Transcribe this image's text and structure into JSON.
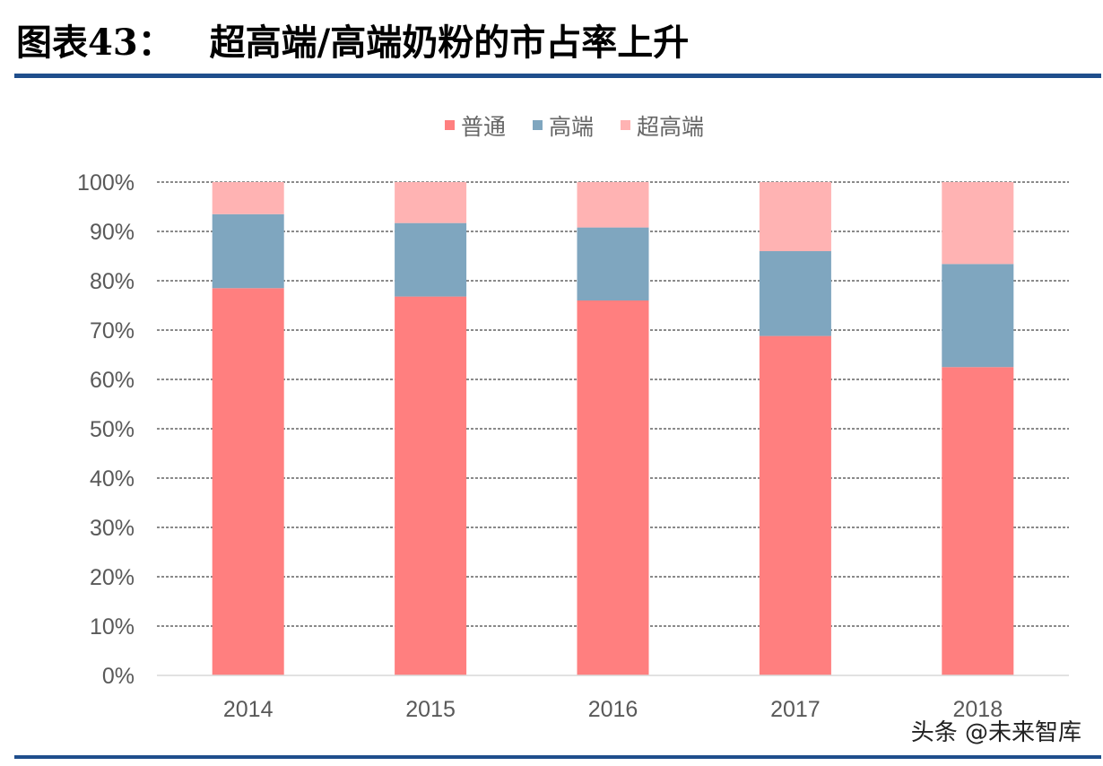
{
  "header": {
    "figure_label": "图表43：",
    "figure_title": "超高端/高端奶粉的市占率上升"
  },
  "watermark": "头条 @未来智库",
  "colors": {
    "rule": "#1f4e8c",
    "普通": "#ff7f7f",
    "高端": "#7fa6bf",
    "超高端": "#ffb3b3"
  },
  "chart_data": {
    "type": "bar",
    "stacked": true,
    "categories": [
      "2014",
      "2015",
      "2016",
      "2017",
      "2018"
    ],
    "series": [
      {
        "name": "普通",
        "color": "#ff7f7f",
        "values": [
          78.5,
          76.8,
          76.0,
          68.8,
          62.5
        ]
      },
      {
        "name": "高端",
        "color": "#7fa6bf",
        "values": [
          15.0,
          14.9,
          14.8,
          17.2,
          20.9
        ]
      },
      {
        "name": "超高端",
        "color": "#ffb3b3",
        "values": [
          6.5,
          8.3,
          9.2,
          14.0,
          16.6
        ]
      }
    ],
    "title": "",
    "xlabel": "",
    "ylabel": "",
    "ylim": [
      0,
      100
    ],
    "yticks": [
      "0%",
      "10%",
      "20%",
      "30%",
      "40%",
      "50%",
      "60%",
      "70%",
      "80%",
      "90%",
      "100%"
    ],
    "grid": true,
    "legend_position": "top"
  }
}
